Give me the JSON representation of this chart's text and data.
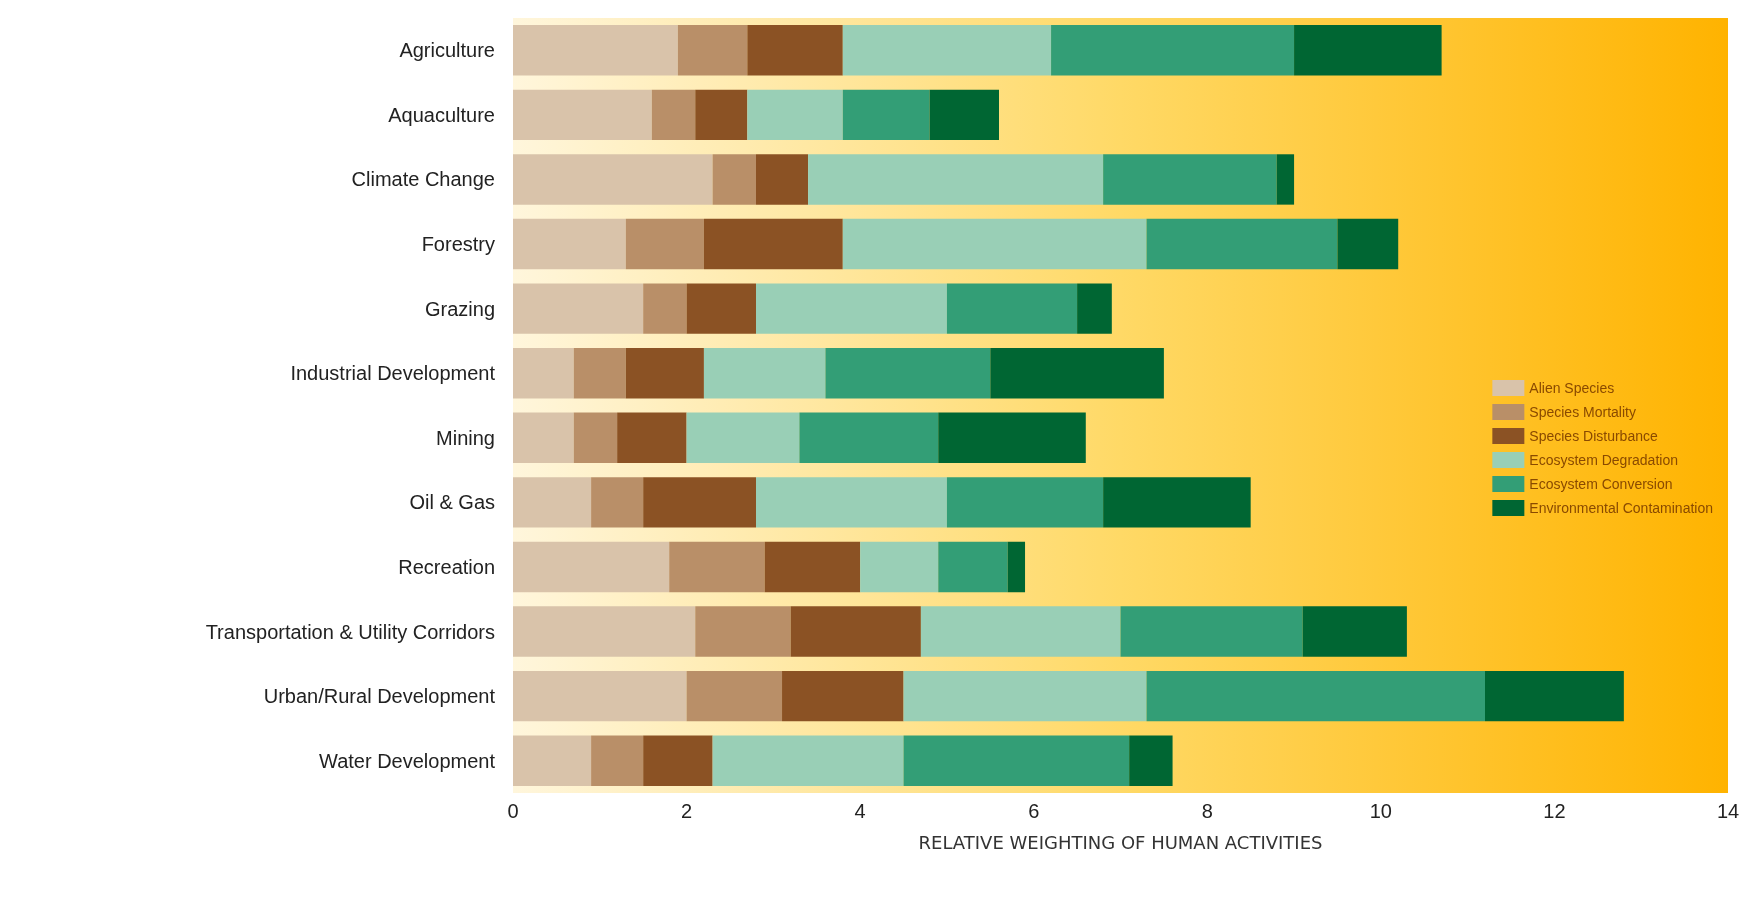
{
  "chart_data": {
    "type": "bar",
    "orientation": "horizontal",
    "stacked": true,
    "xlabel": "RELATIVE WEIGHTING OF HUMAN ACTIVITIES",
    "categories": [
      "Agriculture",
      "Aquaculture",
      "Climate Change",
      "Forestry",
      "Grazing",
      "Industrial Development",
      "Mining",
      "Oil & Gas",
      "Recreation",
      "Transportation & Utility Corridors",
      "Urban/Rural Development",
      "Water Development"
    ],
    "series": [
      {
        "name": "Alien Species",
        "color": "#d9c3aa",
        "values": [
          1.9,
          1.6,
          2.3,
          1.3,
          1.5,
          0.7,
          0.7,
          0.9,
          1.8,
          2.1,
          2.0,
          0.9
        ]
      },
      {
        "name": "Species Mortality",
        "color": "#b98f68",
        "values": [
          0.8,
          0.5,
          0.5,
          0.9,
          0.5,
          0.6,
          0.5,
          0.6,
          1.1,
          1.1,
          1.1,
          0.6
        ]
      },
      {
        "name": "Species Disturbance",
        "color": "#8b5224",
        "values": [
          1.1,
          0.6,
          0.6,
          1.6,
          0.8,
          0.9,
          0.8,
          1.3,
          1.1,
          1.5,
          1.4,
          0.8
        ]
      },
      {
        "name": "Ecosystem Degradation",
        "color": "#99cfb6",
        "values": [
          2.4,
          1.1,
          3.4,
          3.5,
          2.2,
          1.4,
          1.3,
          2.2,
          0.9,
          2.3,
          2.8,
          2.2
        ]
      },
      {
        "name": "Ecosystem Conversion",
        "color": "#339e76",
        "values": [
          2.8,
          1.0,
          2.0,
          2.2,
          1.5,
          1.9,
          1.6,
          1.8,
          0.8,
          2.1,
          3.9,
          2.6
        ]
      },
      {
        "name": "Environmental Contamination",
        "color": "#006633",
        "values": [
          1.7,
          0.8,
          0.2,
          0.7,
          0.4,
          2.0,
          1.7,
          1.7,
          0.2,
          1.2,
          1.6,
          0.5
        ]
      }
    ],
    "xlim": [
      0,
      14
    ],
    "xticks": [
      0,
      2,
      4,
      6,
      8,
      10,
      12,
      14
    ],
    "grid": false,
    "legend": "right"
  }
}
